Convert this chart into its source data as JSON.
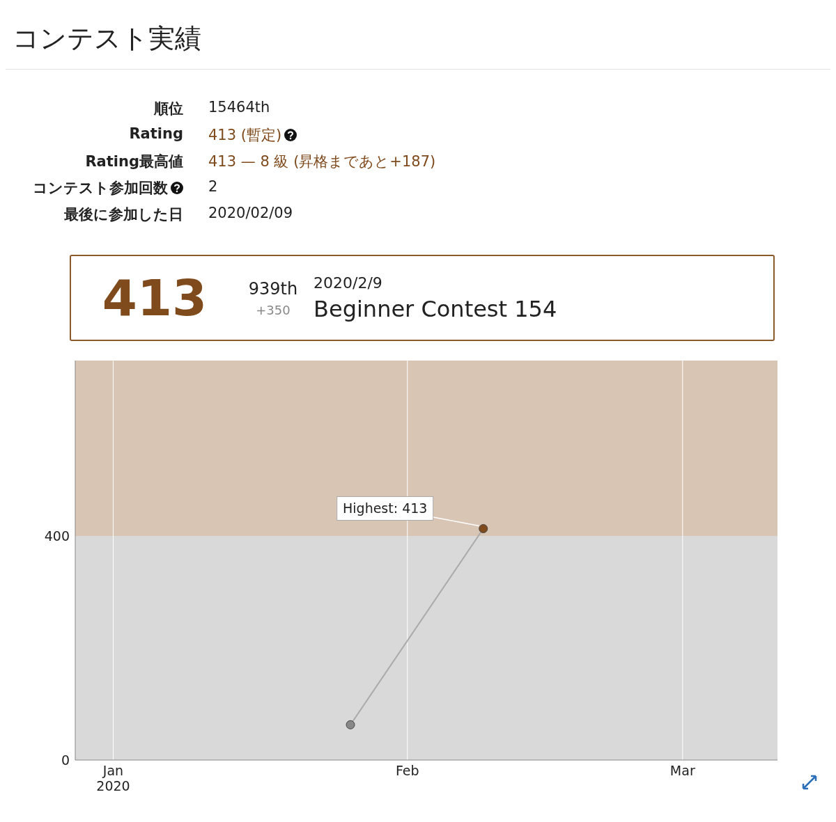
{
  "chart_data": {
    "type": "line",
    "title": "コンテスト実績",
    "annotations": [
      "順位",
      "15464th",
      "Rating",
      "413 (暫定)",
      "Rating最高値",
      "413 — 8 級 (昇格まであと+187)",
      "コンテスト参加回数",
      "2",
      "最後に参加した日",
      "2020/02/09",
      "413",
      "939th",
      "+350",
      "2020/2/9",
      "Beginner Contest 154",
      {
        "text": "Highest: 413",
        "x": "2020-02-09",
        "y": 413
      }
    ],
    "x": [
      "2020-01-26",
      "2020-02-09"
    ],
    "series": [
      {
        "color": "#aaaaaa",
        "colors": [
          "#888888",
          "#7f4a1c"
        ],
        "values": [
          63,
          413
        ]
      }
    ],
    "xlim": [
      "2019-12-28",
      "2020-03-11"
    ],
    "xticks": [
      {
        "value": "2020-01-01",
        "label": "Jan 2020"
      },
      {
        "value": "2020-02-01",
        "label": "Feb"
      },
      {
        "value": "2020-03-01",
        "label": "Mar"
      }
    ],
    "ylim": [
      0,
      713
    ],
    "yticks": [
      0,
      400
    ],
    "bands": [
      {
        "axis": "y",
        "from": 0,
        "to": 400,
        "color": "#d9d9d9"
      },
      {
        "axis": "y",
        "from": 400,
        "to": 713,
        "color": "#d9c5b4"
      }
    ],
    "grid": "x",
    "marker": "circle",
    "line_style": "solid",
    "legend": false
  }
}
